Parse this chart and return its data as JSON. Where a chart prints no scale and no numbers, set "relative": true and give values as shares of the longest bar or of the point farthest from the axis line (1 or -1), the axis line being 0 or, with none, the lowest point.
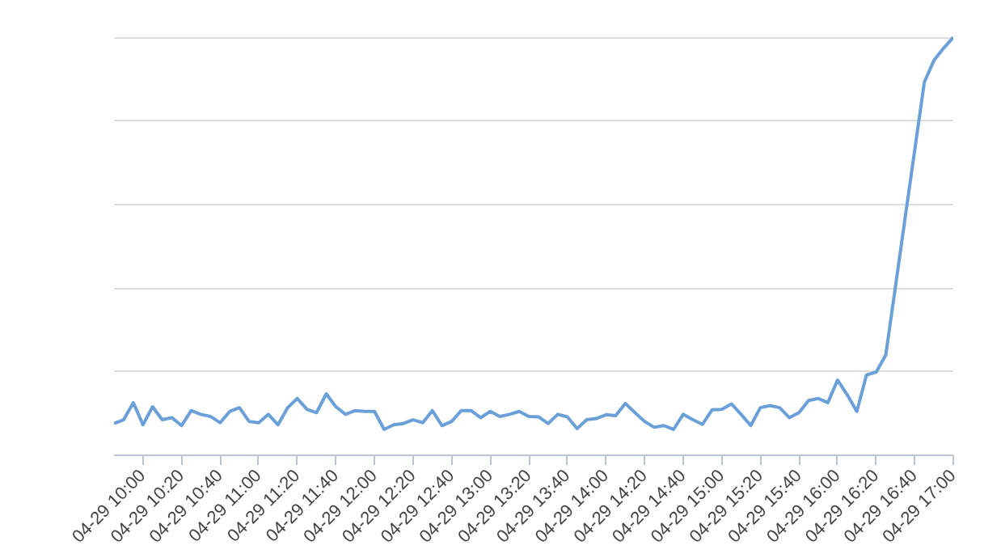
{
  "chart_data": {
    "type": "line",
    "relative": true,
    "grid": "y",
    "categories": [
      null,
      null,
      null,
      "04-29 10:00",
      null,
      null,
      null,
      "04-29 10:20",
      null,
      null,
      null,
      "04-29 10:40",
      null,
      null,
      null,
      "04-29 11:00",
      null,
      null,
      null,
      "04-29 11:20",
      null,
      null,
      null,
      "04-29 11:40",
      null,
      null,
      null,
      "04-29 12:00",
      null,
      null,
      null,
      "04-29 12:20",
      null,
      null,
      null,
      "04-29 12:40",
      null,
      null,
      null,
      "04-29 13:00",
      null,
      null,
      null,
      "04-29 13:20",
      null,
      null,
      null,
      "04-29 13:40",
      null,
      null,
      null,
      "04-29 14:00",
      null,
      null,
      null,
      "04-29 14:20",
      null,
      null,
      null,
      "04-29 14:40",
      null,
      null,
      null,
      "04-29 15:00",
      null,
      null,
      null,
      "04-29 15:20",
      null,
      null,
      null,
      "04-29 15:40",
      null,
      null,
      null,
      "04-29 16:00",
      null,
      null,
      null,
      "04-29 16:20",
      null,
      null,
      null,
      "04-29 16:40",
      null,
      null,
      null,
      "04-29 17:00"
    ],
    "series": [
      {
        "color": "#6a9fd8",
        "values": [
          0.076,
          0.085,
          0.126,
          0.073,
          0.116,
          0.085,
          0.09,
          0.071,
          0.107,
          0.098,
          0.093,
          0.078,
          0.105,
          0.114,
          0.081,
          0.078,
          0.098,
          0.073,
          0.114,
          0.136,
          0.11,
          0.102,
          0.147,
          0.116,
          0.098,
          0.107,
          0.105,
          0.105,
          0.062,
          0.073,
          0.076,
          0.085,
          0.078,
          0.107,
          0.071,
          0.081,
          0.107,
          0.107,
          0.09,
          0.105,
          0.093,
          0.098,
          0.105,
          0.093,
          0.092,
          0.076,
          0.098,
          0.092,
          0.064,
          0.085,
          0.088,
          0.097,
          0.095,
          0.124,
          0.102,
          0.081,
          0.067,
          0.071,
          0.062,
          0.098,
          0.085,
          0.074,
          0.109,
          0.11,
          0.123,
          0.098,
          0.071,
          0.114,
          0.119,
          0.114,
          0.09,
          0.102,
          0.131,
          0.136,
          0.126,
          0.18,
          0.145,
          0.105,
          0.192,
          0.199,
          0.24,
          0.403,
          0.567,
          0.73,
          0.893,
          0.945,
          0.974,
          1.0
        ]
      }
    ]
  }
}
